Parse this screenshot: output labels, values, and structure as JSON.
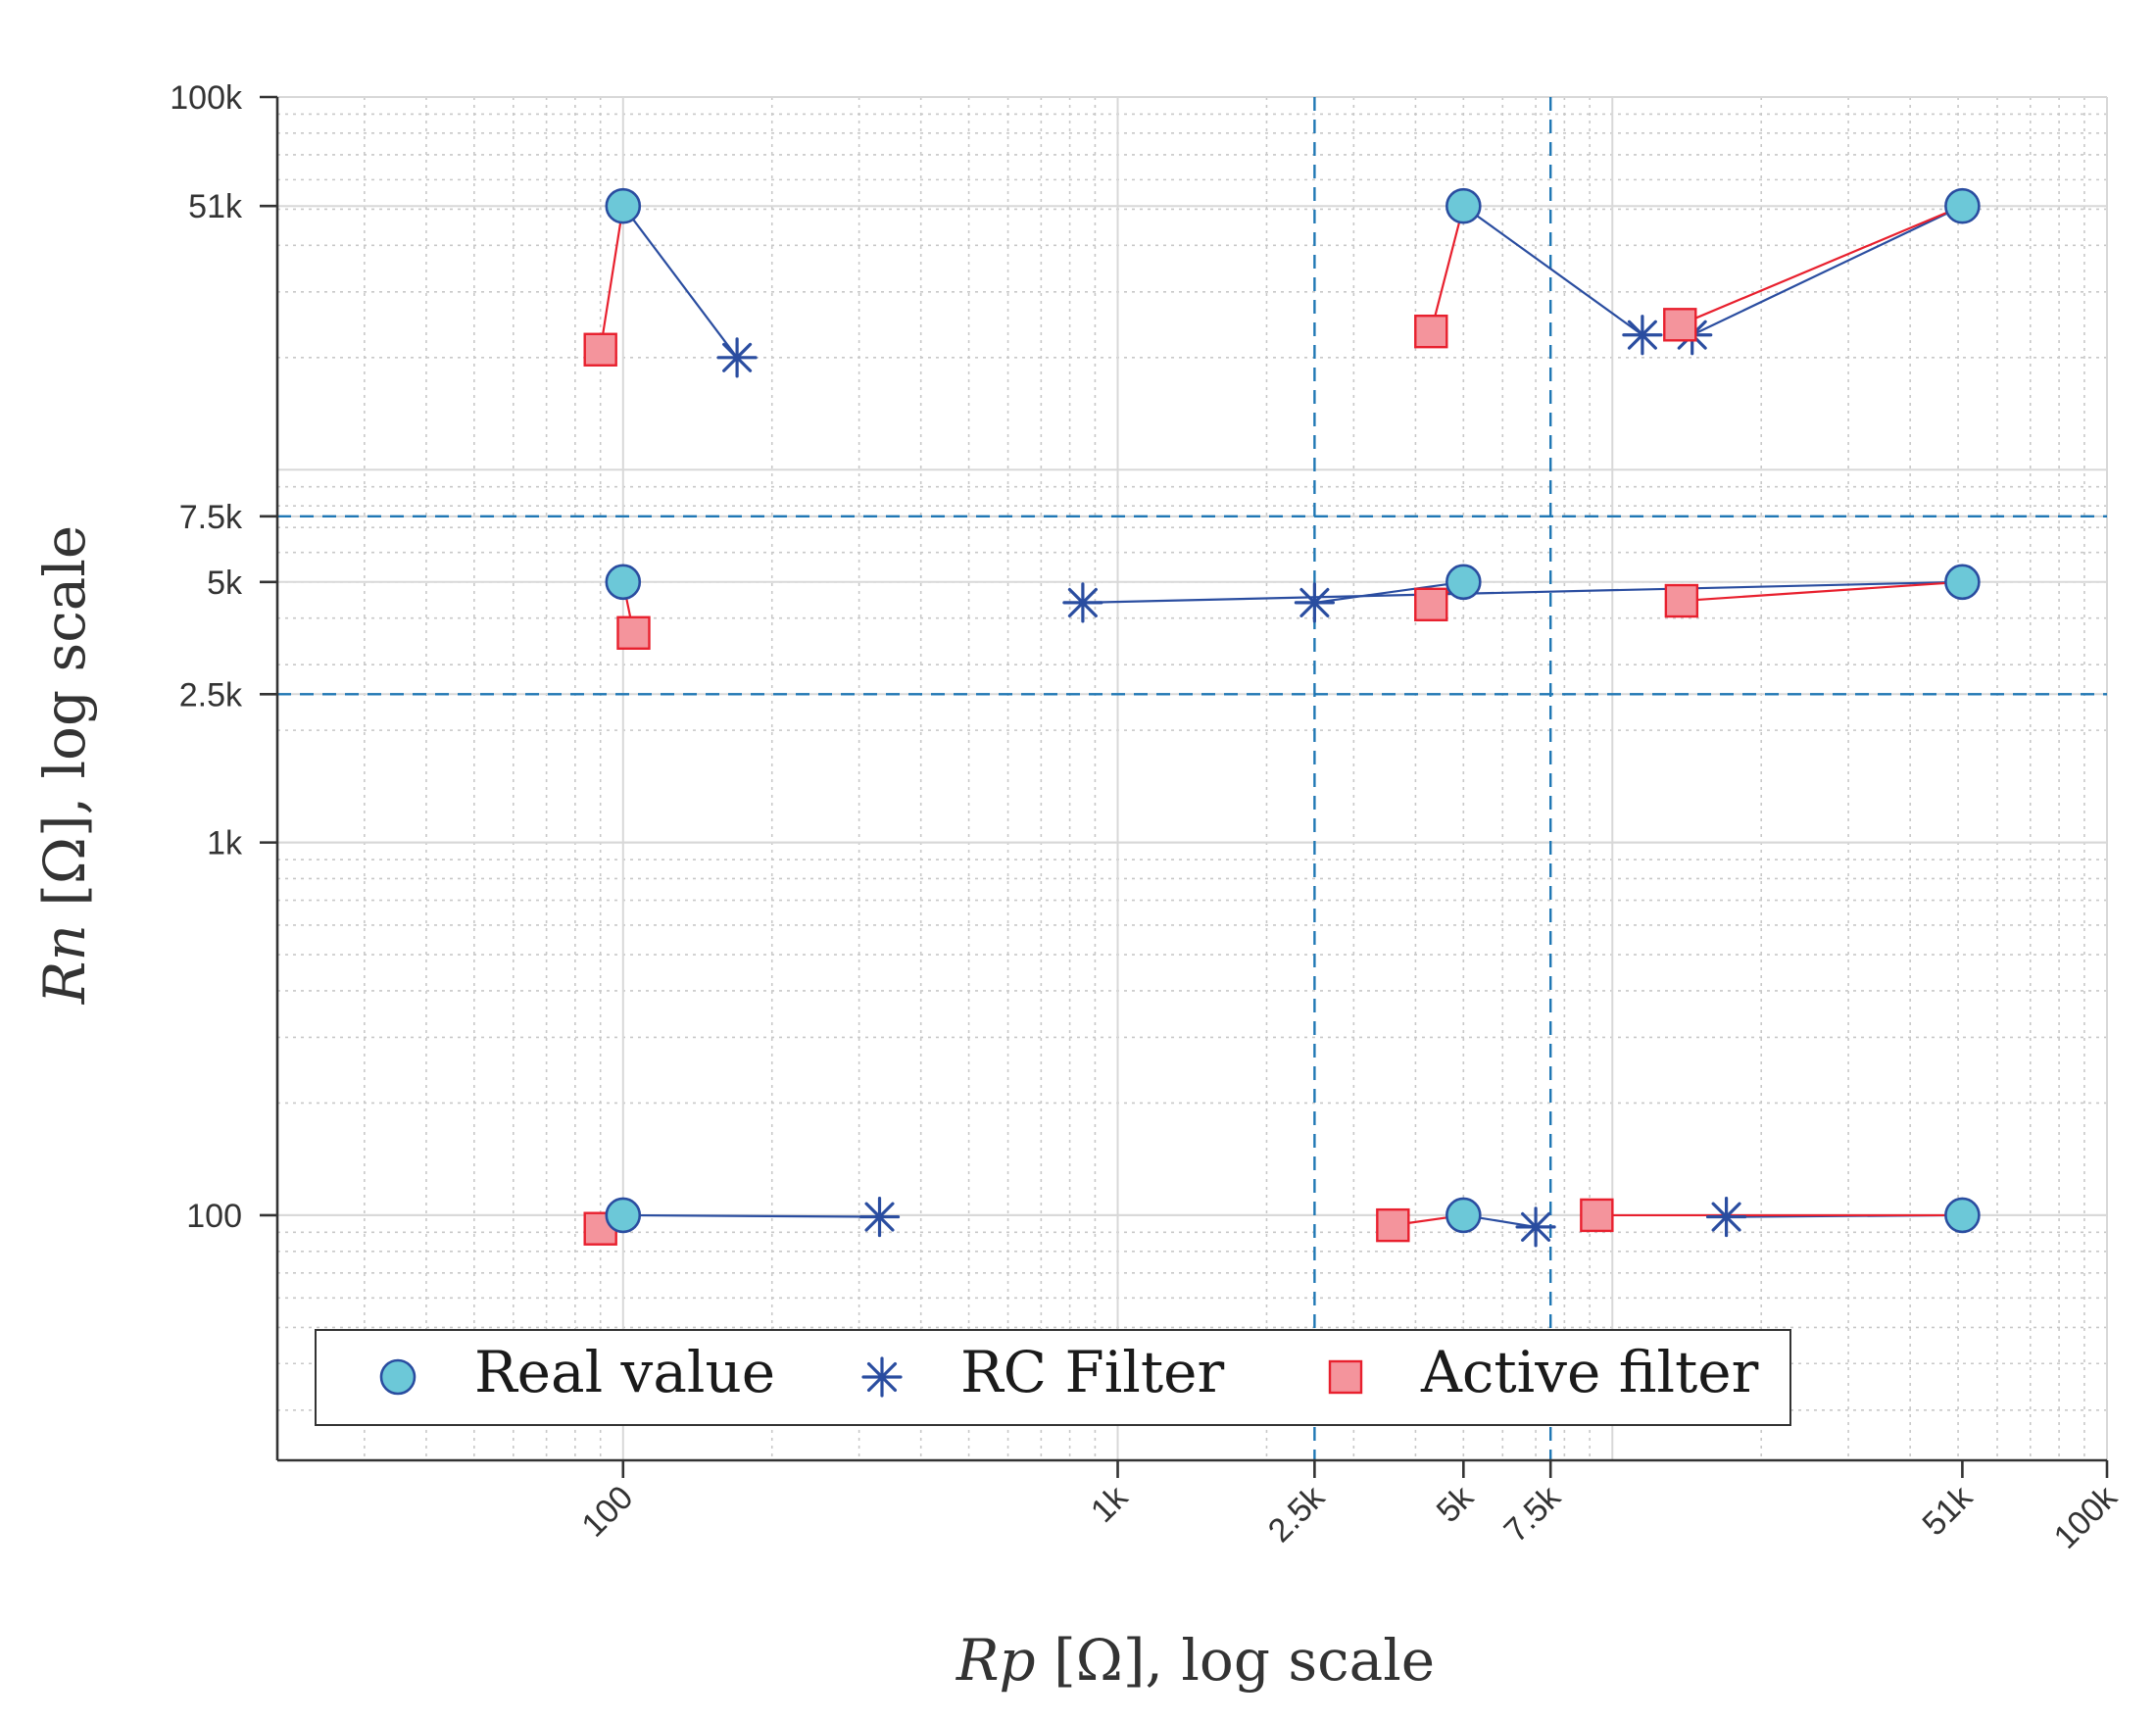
{
  "chart_data": {
    "type": "scatter",
    "xscale": "log",
    "yscale": "log",
    "xlim": [
      20,
      100000
    ],
    "ylim": [
      22,
      100000
    ],
    "xlabel_var": "Rp",
    "xlabel_rest": " [Ω], log scale",
    "ylabel_var": "Rn",
    "ylabel_rest": " [Ω], log scale",
    "x_ticks": [
      {
        "value": 100,
        "label": "100"
      },
      {
        "value": 1000,
        "label": "1k"
      },
      {
        "value": 2500,
        "label": "2.5k"
      },
      {
        "value": 5000,
        "label": "5k"
      },
      {
        "value": 7500,
        "label": "7.5k"
      },
      {
        "value": 51000,
        "label": "51k"
      },
      {
        "value": 100000,
        "label": "100k"
      }
    ],
    "y_ticks": [
      {
        "value": 100,
        "label": "100"
      },
      {
        "value": 1000,
        "label": "1k"
      },
      {
        "value": 2500,
        "label": "2.5k"
      },
      {
        "value": 5000,
        "label": "5k"
      },
      {
        "value": 7500,
        "label": "7.5k"
      },
      {
        "value": 51000,
        "label": "51k"
      },
      {
        "value": 100000,
        "label": "100k"
      }
    ],
    "threshold_lines": {
      "x": [
        2500,
        7500
      ],
      "y": [
        2500,
        7500
      ]
    },
    "grid": true,
    "legend": {
      "position": "bottom-left",
      "entries": [
        {
          "name": "Real value",
          "marker": "circle"
        },
        {
          "name": "RC Filter",
          "marker": "asterisk"
        },
        {
          "name": "Active filter",
          "marker": "square"
        }
      ]
    },
    "colors": {
      "real": "#6cc8d8",
      "real_edge": "#2a4da0",
      "rc": "#2a4da0",
      "active": "#f4949c",
      "active_edge": "#e8202e",
      "threshold": "#1f77b4"
    },
    "groups": [
      {
        "real": [
          100,
          51000
        ],
        "rc": [
          170,
          20000
        ],
        "active": [
          90,
          21000
        ]
      },
      {
        "real": [
          5000,
          51000
        ],
        "rc": [
          11500,
          23000
        ],
        "active": [
          4300,
          23500
        ]
      },
      {
        "real": [
          51000,
          51000
        ],
        "rc": [
          14500,
          23000
        ],
        "active": [
          13700,
          24500
        ]
      },
      {
        "real": [
          100,
          5000
        ],
        "active": [
          105,
          3650
        ]
      },
      {
        "real": [
          5000,
          5000
        ],
        "rc": [
          2500,
          4400
        ],
        "active": [
          4300,
          4350
        ]
      },
      {
        "real": [
          51000,
          5000
        ],
        "rc": [
          850,
          4400
        ],
        "active": [
          13800,
          4450
        ]
      },
      {
        "real": [
          100,
          100
        ],
        "rc": [
          330,
          99
        ],
        "active": [
          90,
          92
        ]
      },
      {
        "real": [
          5000,
          100
        ],
        "rc": [
          7000,
          93
        ],
        "active": [
          3600,
          94
        ]
      },
      {
        "real": [
          51000,
          100
        ],
        "rc": [
          17000,
          99
        ],
        "active": [
          9300,
          100
        ]
      }
    ]
  }
}
